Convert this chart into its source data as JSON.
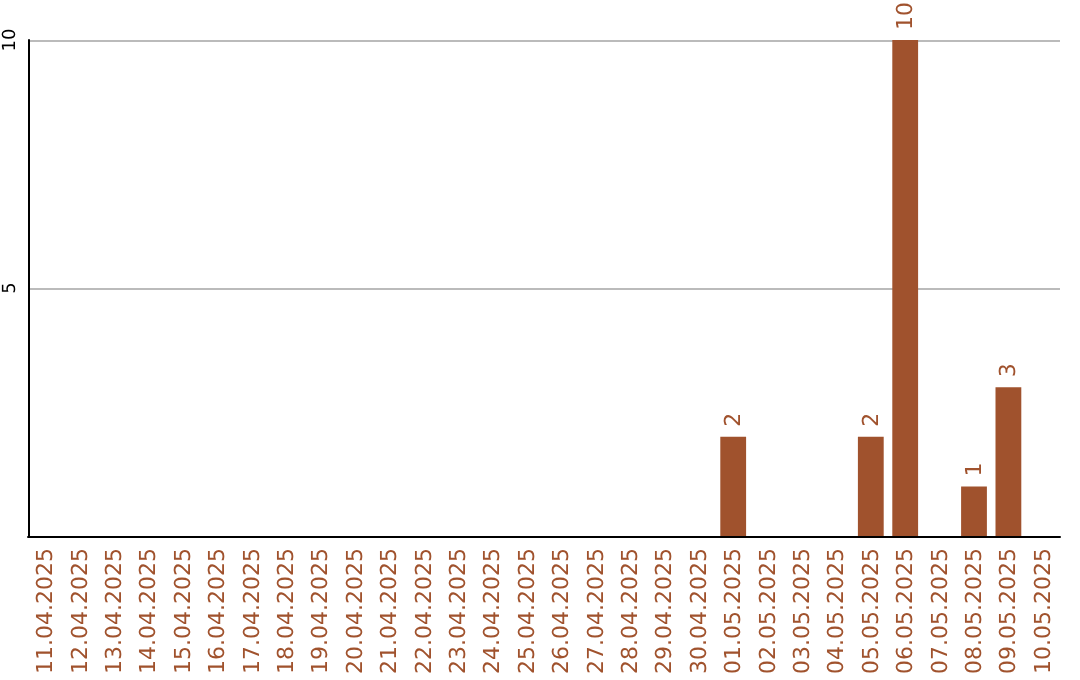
{
  "chart_data": {
    "type": "bar",
    "categories": [
      "11.04.2025",
      "12.04.2025",
      "13.04.2025",
      "14.04.2025",
      "15.04.2025",
      "16.04.2025",
      "17.04.2025",
      "18.04.2025",
      "19.04.2025",
      "20.04.2025",
      "21.04.2025",
      "22.04.2025",
      "23.04.2025",
      "24.04.2025",
      "25.04.2025",
      "26.04.2025",
      "27.04.2025",
      "28.04.2025",
      "29.04.2025",
      "30.04.2025",
      "01.05.2025",
      "02.05.2025",
      "03.05.2025",
      "04.05.2025",
      "05.05.2025",
      "06.05.2025",
      "07.05.2025",
      "08.05.2025",
      "09.05.2025",
      "10.05.2025"
    ],
    "values": [
      0,
      0,
      0,
      0,
      0,
      0,
      0,
      0,
      0,
      0,
      0,
      0,
      0,
      0,
      0,
      0,
      0,
      0,
      0,
      0,
      2,
      0,
      0,
      0,
      2,
      10,
      0,
      1,
      3,
      0
    ],
    "value_labels": [
      null,
      null,
      null,
      null,
      null,
      null,
      null,
      null,
      null,
      null,
      null,
      null,
      null,
      null,
      null,
      null,
      null,
      null,
      null,
      null,
      "2",
      null,
      null,
      null,
      "2",
      "10",
      null,
      "1",
      "3",
      null
    ],
    "color": "#a0522d",
    "ylim": [
      0,
      10
    ],
    "yticks": [
      5,
      10
    ],
    "grid": "y"
  }
}
